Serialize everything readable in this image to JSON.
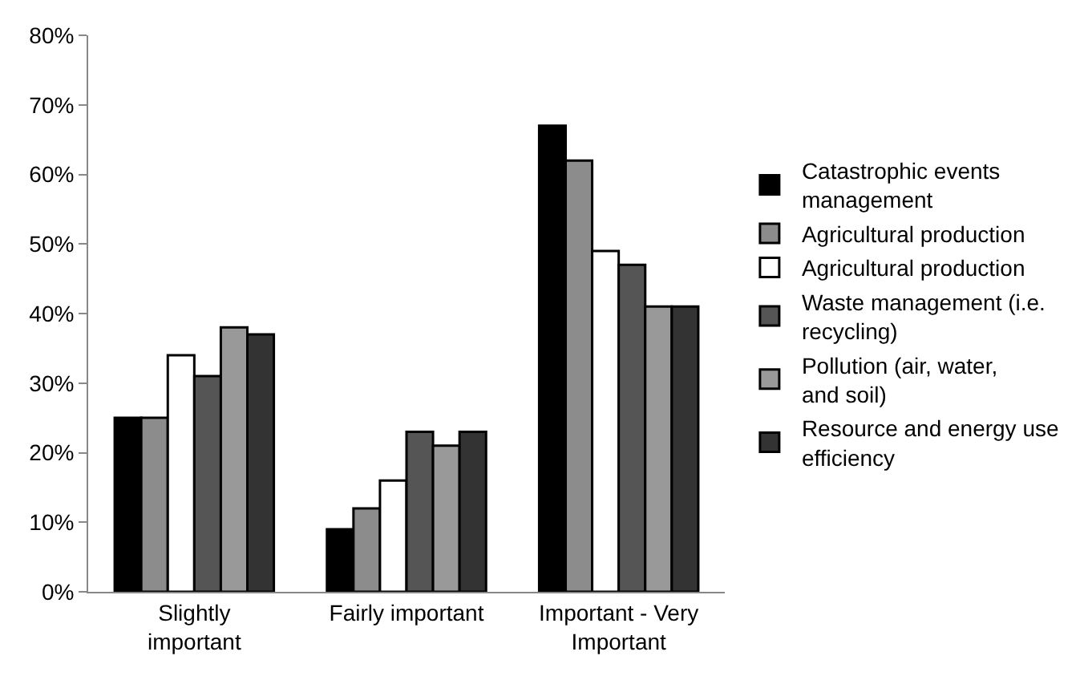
{
  "chart_data": {
    "type": "bar",
    "categories": [
      "Slightly important",
      "Fairly important",
      "Important - Very Important"
    ],
    "series": [
      {
        "name": "Catastrophic events management",
        "color": "#000000",
        "values": [
          25,
          9,
          67
        ]
      },
      {
        "name": "Agricultural production",
        "color": "#8c8c8c",
        "values": [
          25,
          12,
          62
        ]
      },
      {
        "name": "Agricultural production",
        "color": "#ffffff",
        "values": [
          34,
          16,
          49
        ]
      },
      {
        "name": "Waste management (i.e. recycling)",
        "color": "#555555",
        "values": [
          31,
          23,
          47
        ]
      },
      {
        "name": "Pollution (air, water, and soil)",
        "color": "#999999",
        "values": [
          38,
          21,
          41
        ]
      },
      {
        "name": "Resource and energy use efficiency",
        "color": "#333333",
        "values": [
          37,
          23,
          41
        ]
      }
    ],
    "ylim": [
      0,
      80
    ],
    "yticks": [
      {
        "value": 0,
        "label": "0%"
      },
      {
        "value": 10,
        "label": "10%"
      },
      {
        "value": 20,
        "label": "20%"
      },
      {
        "value": 30,
        "label": "30%"
      },
      {
        "value": 40,
        "label": "40%"
      },
      {
        "value": 50,
        "label": "50%"
      },
      {
        "value": 60,
        "label": "60%"
      },
      {
        "value": 70,
        "label": "70%"
      },
      {
        "value": 80,
        "label": "80%"
      }
    ],
    "legend": "right"
  }
}
